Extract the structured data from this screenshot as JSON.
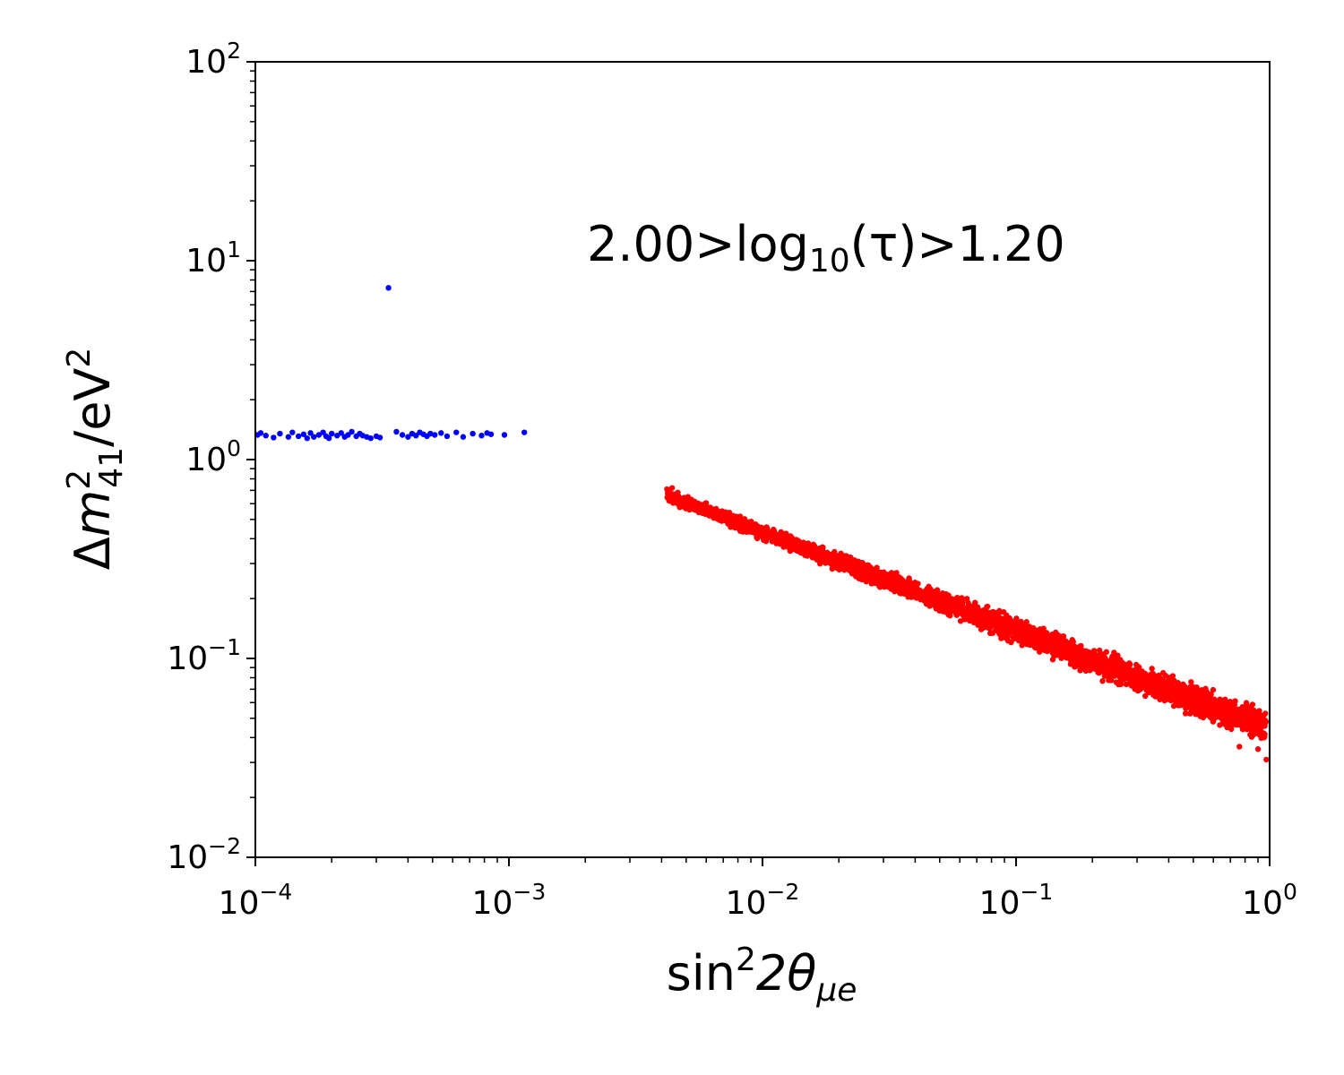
{
  "chart_data": {
    "type": "scatter",
    "x_scale": "log",
    "y_scale": "log",
    "xlim": [
      0.0001,
      1
    ],
    "ylim": [
      0.01,
      100
    ],
    "grid": false,
    "xlabel": {
      "base": "sin",
      "sup": "2",
      "mid": "2θ",
      "sub": "μe"
    },
    "ylabel": {
      "pre": "Δ",
      "m": "m",
      "sup": "2",
      "sub": "41",
      "post": "/eV",
      "post_sup": "2"
    },
    "annotation": {
      "pre": "2.00>log",
      "sub": "10",
      "post": "(τ)>1.20"
    },
    "x_ticks": [
      {
        "value": 0.0001,
        "base": "10",
        "exp": "−4"
      },
      {
        "value": 0.001,
        "base": "10",
        "exp": "−3"
      },
      {
        "value": 0.01,
        "base": "10",
        "exp": "−2"
      },
      {
        "value": 0.1,
        "base": "10",
        "exp": "−1"
      },
      {
        "value": 1,
        "base": "10",
        "exp": "0"
      }
    ],
    "y_ticks": [
      {
        "value": 0.01,
        "base": "10",
        "exp": "−2"
      },
      {
        "value": 0.1,
        "base": "10",
        "exp": "−1"
      },
      {
        "value": 1,
        "base": "10",
        "exp": "0"
      },
      {
        "value": 10,
        "base": "10",
        "exp": "1"
      },
      {
        "value": 100,
        "base": "10",
        "exp": "2"
      }
    ],
    "series": [
      {
        "color": "#0000ff",
        "points": [
          [
            0.000102,
            1.33
          ],
          [
            0.000105,
            1.36
          ],
          [
            0.00011,
            1.32
          ],
          [
            0.000118,
            1.29
          ],
          [
            0.000125,
            1.35
          ],
          [
            0.000135,
            1.3
          ],
          [
            0.00014,
            1.37
          ],
          [
            0.000148,
            1.31
          ],
          [
            0.000155,
            1.34
          ],
          [
            0.00016,
            1.28
          ],
          [
            0.000165,
            1.36
          ],
          [
            0.00017,
            1.3
          ],
          [
            0.000178,
            1.33
          ],
          [
            0.000185,
            1.37
          ],
          [
            0.00019,
            1.31
          ],
          [
            0.000195,
            1.28
          ],
          [
            0.0002,
            1.35
          ],
          [
            0.00021,
            1.32
          ],
          [
            0.000218,
            1.36
          ],
          [
            0.000225,
            1.3
          ],
          [
            0.000232,
            1.33
          ],
          [
            0.00024,
            1.38
          ],
          [
            0.00025,
            1.31
          ],
          [
            0.000258,
            1.35
          ],
          [
            0.000265,
            1.32
          ],
          [
            0.000275,
            1.3
          ],
          [
            0.000285,
            1.28
          ],
          [
            0.0003,
            1.31
          ],
          [
            0.00031,
            1.29
          ],
          [
            0.000335,
            7.3
          ],
          [
            0.00036,
            1.38
          ],
          [
            0.00038,
            1.33
          ],
          [
            0.0004,
            1.3
          ],
          [
            0.000415,
            1.35
          ],
          [
            0.00043,
            1.32
          ],
          [
            0.000445,
            1.37
          ],
          [
            0.00046,
            1.34
          ],
          [
            0.000475,
            1.31
          ],
          [
            0.00049,
            1.35
          ],
          [
            0.00051,
            1.33
          ],
          [
            0.00054,
            1.36
          ],
          [
            0.00057,
            1.31
          ],
          [
            0.00062,
            1.37
          ],
          [
            0.00066,
            1.3
          ],
          [
            0.00072,
            1.35
          ],
          [
            0.00078,
            1.32
          ],
          [
            0.00082,
            1.36
          ],
          [
            0.00085,
            1.34
          ],
          [
            0.00096,
            1.33
          ],
          [
            0.00115,
            1.37
          ]
        ]
      },
      {
        "color": "#ff0000",
        "band": {
          "x_min": 0.0042,
          "x_max": 0.97,
          "y_at_x_min": 0.66,
          "y_at_x_max": 0.045,
          "width_dex_at_x_min": 0.08,
          "width_dex_at_x_max": 0.22,
          "outliers": [
            [
              0.0042,
              0.71
            ],
            [
              0.0044,
              0.72
            ],
            [
              0.6,
              0.052
            ],
            [
              0.72,
              0.049
            ],
            [
              0.8,
              0.057
            ],
            [
              0.85,
              0.042
            ],
            [
              0.9,
              0.035
            ],
            [
              0.93,
              0.051
            ],
            [
              0.97,
              0.031
            ],
            [
              0.95,
              0.04
            ],
            [
              0.68,
              0.045
            ],
            [
              0.76,
              0.036
            ]
          ]
        }
      }
    ]
  }
}
